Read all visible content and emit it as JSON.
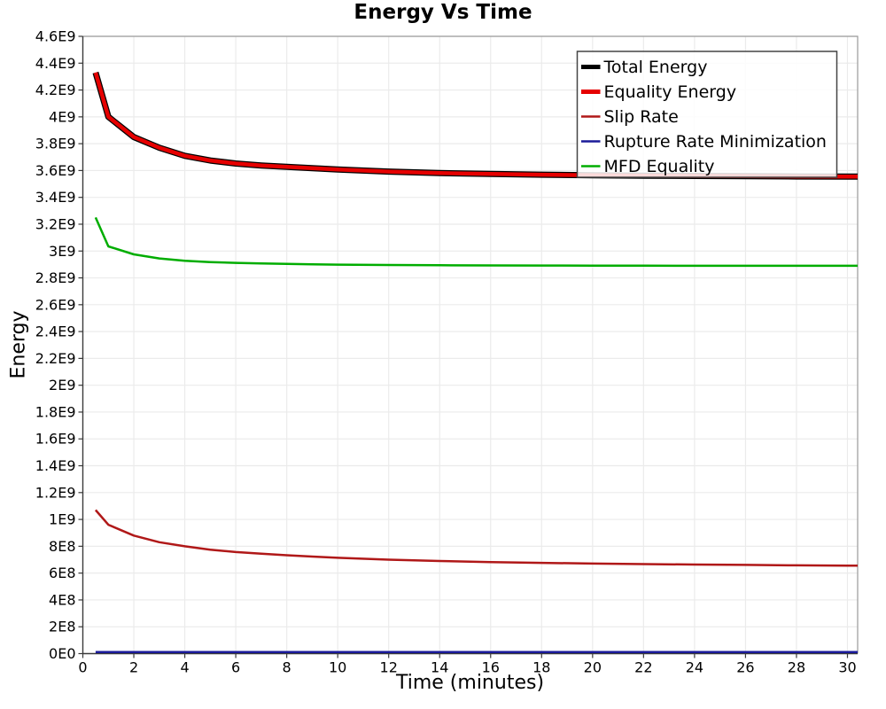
{
  "chart_data": {
    "type": "line",
    "title": "Energy Vs Time",
    "xlabel": "Time (minutes)",
    "ylabel": "Energy",
    "xlim": [
      0,
      30.4
    ],
    "ylim": [
      0,
      4600000000.0
    ],
    "grid": true,
    "legend_position": "top-right",
    "x_ticks": [
      0,
      2,
      4,
      6,
      8,
      10,
      12,
      14,
      16,
      18,
      20,
      22,
      24,
      26,
      28,
      30
    ],
    "y_ticks": [
      {
        "value": 0,
        "label": "0E0"
      },
      {
        "value": 200000000.0,
        "label": "2E8"
      },
      {
        "value": 400000000.0,
        "label": "4E8"
      },
      {
        "value": 600000000.0,
        "label": "6E8"
      },
      {
        "value": 800000000.0,
        "label": "8E8"
      },
      {
        "value": 1000000000.0,
        "label": "1E9"
      },
      {
        "value": 1200000000.0,
        "label": "1.2E9"
      },
      {
        "value": 1400000000.0,
        "label": "1.4E9"
      },
      {
        "value": 1600000000.0,
        "label": "1.6E9"
      },
      {
        "value": 1800000000.0,
        "label": "1.8E9"
      },
      {
        "value": 2000000000.0,
        "label": "2E9"
      },
      {
        "value": 2200000000.0,
        "label": "2.2E9"
      },
      {
        "value": 2400000000.0,
        "label": "2.4E9"
      },
      {
        "value": 2600000000.0,
        "label": "2.6E9"
      },
      {
        "value": 2800000000.0,
        "label": "2.8E9"
      },
      {
        "value": 3000000000.0,
        "label": "3E9"
      },
      {
        "value": 3200000000.0,
        "label": "3.2E9"
      },
      {
        "value": 3400000000.0,
        "label": "3.4E9"
      },
      {
        "value": 3600000000.0,
        "label": "3.6E9"
      },
      {
        "value": 3800000000.0,
        "label": "3.8E9"
      },
      {
        "value": 4000000000.0,
        "label": "4E9"
      },
      {
        "value": 4200000000.0,
        "label": "4.2E9"
      },
      {
        "value": 4400000000.0,
        "label": "4.4E9"
      },
      {
        "value": 4600000000.0,
        "label": "4.6E9"
      }
    ],
    "x": [
      0.5,
      1,
      2,
      3,
      4,
      5,
      6,
      7,
      8,
      9,
      10,
      12,
      14,
      16,
      18,
      20,
      22,
      24,
      26,
      28,
      30,
      30.4
    ],
    "series": [
      {
        "name": "Total Energy",
        "color": "#000000",
        "width": 7,
        "values": [
          4330000000.0,
          4000000000.0,
          3850000000.0,
          3770000000.0,
          3710000000.0,
          3675000000.0,
          3652000000.0,
          3638000000.0,
          3627000000.0,
          3617000000.0,
          3608000000.0,
          3592000000.0,
          3581000000.0,
          3574000000.0,
          3569000000.0,
          3565000000.0,
          3562000000.0,
          3560000000.0,
          3558000000.0,
          3556000000.0,
          3555000000.0,
          3555000000.0
        ]
      },
      {
        "name": "Equality Energy",
        "color": "#e60000",
        "width": 4.5,
        "values": [
          4330000000.0,
          4000000000.0,
          3850000000.0,
          3770000000.0,
          3710000000.0,
          3675000000.0,
          3652000000.0,
          3638000000.0,
          3627000000.0,
          3617000000.0,
          3608000000.0,
          3592000000.0,
          3581000000.0,
          3574000000.0,
          3569000000.0,
          3565000000.0,
          3562000000.0,
          3560000000.0,
          3558000000.0,
          3556000000.0,
          3555000000.0,
          3555000000.0
        ]
      },
      {
        "name": "Slip Rate",
        "color": "#b01818",
        "width": 2.5,
        "values": [
          1070000000.0,
          960000000.0,
          880000000.0,
          830000000.0,
          800000000.0,
          775000000.0,
          757000000.0,
          744000000.0,
          733000000.0,
          723000000.0,
          714000000.0,
          700000000.0,
          690000000.0,
          682000000.0,
          676000000.0,
          671000000.0,
          667000000.0,
          664000000.0,
          661000000.0,
          658000000.0,
          656000000.0,
          655000000.0
        ]
      },
      {
        "name": "Rupture Rate Minimization",
        "color": "#1a1a99",
        "width": 2.5,
        "values": [
          12000000.0,
          12000000.0,
          12000000.0,
          12000000.0,
          12000000.0,
          12000000.0,
          12000000.0,
          12000000.0,
          12000000.0,
          12000000.0,
          12000000.0,
          12000000.0,
          12000000.0,
          12000000.0,
          12000000.0,
          12000000.0,
          12000000.0,
          12000000.0,
          12000000.0,
          12000000.0,
          12000000.0,
          12000000.0
        ]
      },
      {
        "name": "MFD Equality",
        "color": "#00ad00",
        "width": 2.5,
        "values": [
          3250000000.0,
          3035000000.0,
          2975000000.0,
          2945000000.0,
          2928000000.0,
          2918000000.0,
          2912000000.0,
          2907000000.0,
          2904000000.0,
          2901000000.0,
          2899000000.0,
          2896000000.0,
          2894000000.0,
          2893000000.0,
          2892000000.0,
          2891000000.0,
          2891000000.0,
          2890000000.0,
          2890000000.0,
          2890000000.0,
          2890000000.0,
          2890000000.0
        ]
      }
    ],
    "colors": {
      "grid": "#ebebeb",
      "axis_dark": "#3a3a3a",
      "axis_light": "#9a9a9a",
      "legend_border": "#444444"
    }
  }
}
